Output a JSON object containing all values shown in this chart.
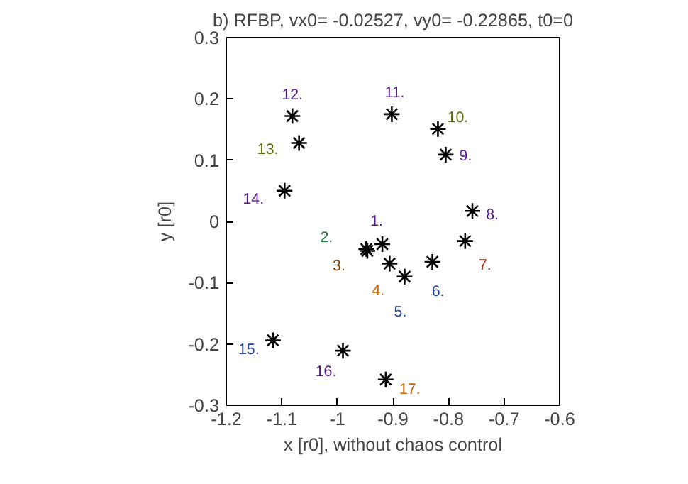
{
  "chart_data": {
    "type": "scatter",
    "title": "b) RFBP, vx0= -0.02527, vy0= -0.22865, t0=0",
    "xlabel": "x [r0], without chaos control",
    "ylabel": "y [r0]",
    "x": [
      -0.919,
      -0.948,
      -0.946,
      -0.906,
      -0.879,
      -0.829,
      -0.77,
      -0.757,
      -0.805,
      -0.819,
      -0.902,
      -1.081,
      -1.069,
      -1.095,
      -1.116,
      -0.99,
      -0.913
    ],
    "series": [
      {
        "color": "#000000",
        "values": [
          -0.037,
          -0.045,
          -0.048,
          -0.069,
          -0.09,
          -0.066,
          -0.032,
          0.017,
          0.109,
          0.151,
          0.175,
          0.172,
          0.128,
          0.05,
          -0.194,
          -0.211,
          -0.258
        ]
      }
    ],
    "marker": "cross",
    "grid": false,
    "xlim": [
      -1.2,
      -0.6
    ],
    "xticks": [
      -1.2,
      -1.1,
      {
        "value": -1,
        "label": "-1"
      },
      -0.9,
      -0.8,
      -0.7,
      -0.6
    ],
    "ylim": [
      -0.3,
      0.3
    ],
    "yticks": [
      -0.3,
      -0.2,
      -0.1,
      {
        "value": 0,
        "label": "0"
      },
      0.1,
      0.2,
      0.3
    ],
    "annotations": [
      {
        "text": "1.",
        "x": -0.919,
        "y": -0.037
      },
      {
        "text": "2.",
        "x": -0.948,
        "y": -0.045
      },
      {
        "text": "3.",
        "x": -0.946,
        "y": -0.048
      },
      {
        "text": "4.",
        "x": -0.906,
        "y": -0.069
      },
      {
        "text": "5.",
        "x": -0.879,
        "y": -0.09
      },
      {
        "text": "6.",
        "x": -0.829,
        "y": -0.066
      },
      {
        "text": "7.",
        "x": -0.77,
        "y": -0.032
      },
      {
        "text": "8.",
        "x": -0.757,
        "y": 0.017
      },
      {
        "text": "9.",
        "x": -0.805,
        "y": 0.109
      },
      {
        "text": "10.",
        "x": -0.819,
        "y": 0.151
      },
      {
        "text": "11.",
        "x": -0.902,
        "y": 0.175
      },
      {
        "text": "12.",
        "x": -1.081,
        "y": 0.172
      },
      {
        "text": "13.",
        "x": -1.069,
        "y": 0.128
      },
      {
        "text": "14.",
        "x": -1.095,
        "y": 0.05
      },
      {
        "text": "15.",
        "x": -1.116,
        "y": -0.194
      },
      {
        "text": "16.",
        "x": -0.99,
        "y": -0.211
      },
      {
        "text": "17.",
        "x": -0.913,
        "y": -0.258
      }
    ]
  }
}
